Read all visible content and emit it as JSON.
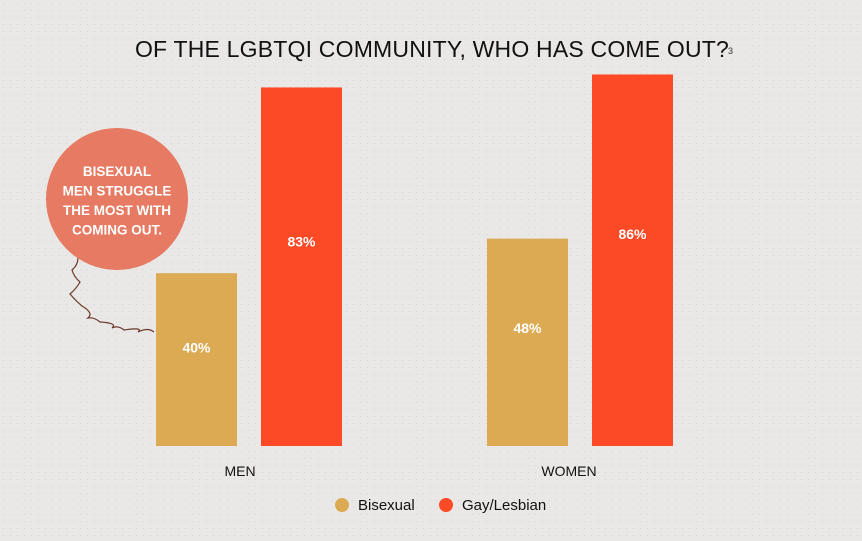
{
  "chart_data": {
    "type": "bar",
    "title": "OF THE LGBTQI COMMUNITY, WHO HAS COME OUT?",
    "footnote_marker": "3",
    "categories": [
      "MEN",
      "WOMEN"
    ],
    "series": [
      {
        "name": "Bisexual",
        "color": "#dcaa52",
        "values": [
          40,
          48
        ],
        "labels": [
          "40%",
          "48%"
        ]
      },
      {
        "name": "Gay/Lesbian",
        "color": "#fc4a26",
        "values": [
          83,
          86
        ],
        "labels": [
          "83%",
          "86%"
        ]
      }
    ],
    "ylim": [
      0,
      100
    ],
    "grid": false,
    "legend_position": "bottom-center",
    "annotation": {
      "lines": [
        "BISEXUAL",
        "MEN STRUGGLE",
        "THE MOST WITH",
        "COMING OUT."
      ],
      "color": "#e67a62",
      "points_to": "MEN Bisexual"
    }
  }
}
